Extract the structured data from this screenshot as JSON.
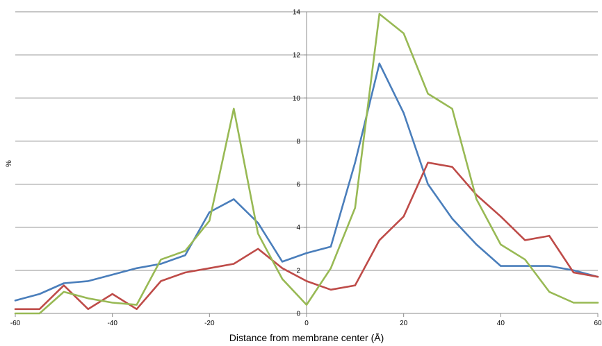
{
  "chart_data": {
    "type": "line",
    "title": "",
    "xlabel": "Distance from membrane center (Å)",
    "ylabel": "%",
    "xlim": [
      -60,
      60
    ],
    "ylim": [
      0,
      14
    ],
    "xticks": [
      -60,
      -40,
      -20,
      0,
      20,
      40,
      60
    ],
    "yticks": [
      0,
      2,
      4,
      6,
      8,
      10,
      12,
      14
    ],
    "grid": "horizontal",
    "legend": "none",
    "x": [
      -60,
      -55,
      -50,
      -45,
      -40,
      -35,
      -30,
      -25,
      -20,
      -15,
      -10,
      -5,
      0,
      5,
      10,
      15,
      20,
      25,
      30,
      35,
      40,
      45,
      50,
      55,
      60
    ],
    "series": [
      {
        "color": "#4a7ebb",
        "values": [
          0.6,
          0.9,
          1.4,
          1.5,
          1.8,
          2.1,
          2.3,
          2.7,
          4.7,
          5.3,
          4.2,
          2.4,
          2.8,
          3.1,
          7.0,
          11.6,
          9.3,
          6.0,
          4.4,
          3.2,
          2.2,
          2.2,
          2.2,
          2.0,
          1.7
        ]
      },
      {
        "color": "#be4b48",
        "values": [
          0.2,
          0.2,
          1.3,
          0.2,
          0.9,
          0.2,
          1.5,
          1.9,
          2.1,
          2.3,
          3.0,
          2.1,
          1.5,
          1.1,
          1.3,
          3.4,
          4.5,
          7.0,
          6.8,
          5.5,
          4.5,
          3.4,
          3.6,
          1.9,
          1.7
        ]
      },
      {
        "color": "#98b954",
        "values": [
          0.0,
          0.0,
          1.0,
          0.7,
          0.5,
          0.4,
          2.5,
          2.9,
          4.3,
          9.5,
          3.7,
          1.6,
          0.4,
          2.1,
          4.9,
          13.9,
          13.0,
          10.2,
          9.5,
          5.3,
          3.2,
          2.5,
          1.0,
          0.5,
          0.5
        ]
      }
    ]
  }
}
